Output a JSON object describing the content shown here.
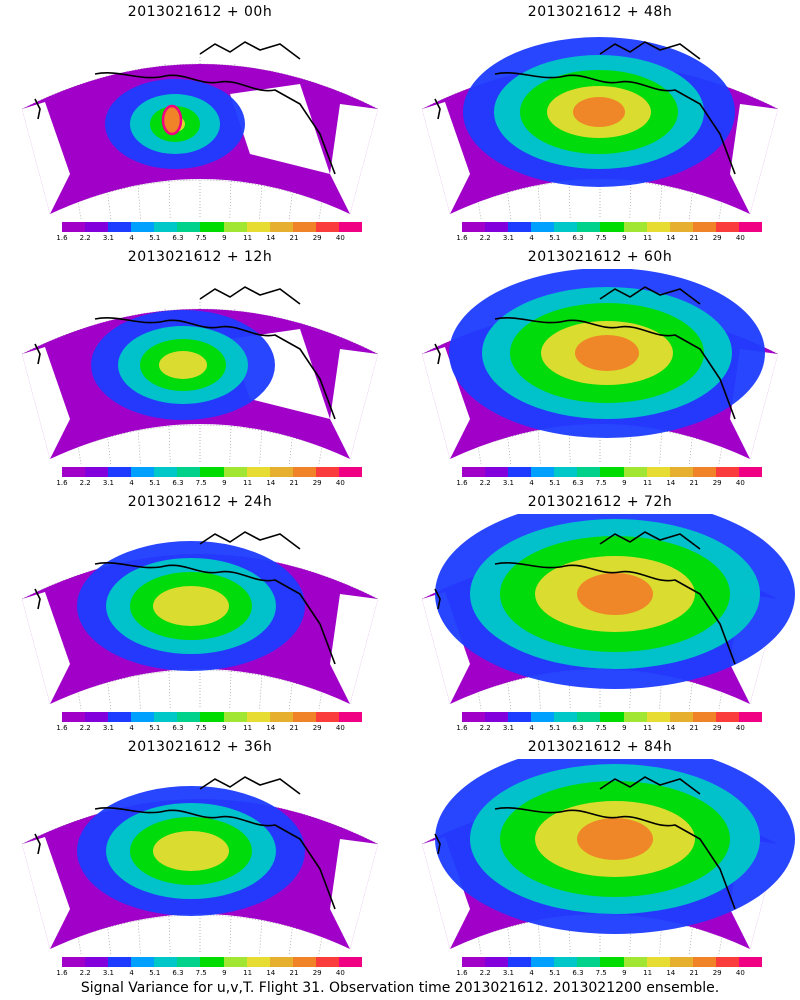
{
  "panels": [
    {
      "title": "2013021612 + 00h",
      "level": 0
    },
    {
      "title": "2013021612 + 48h",
      "level": 3
    },
    {
      "title": "2013021612 + 12h",
      "level": 1
    },
    {
      "title": "2013021612 + 60h",
      "level": 4
    },
    {
      "title": "2013021612 + 24h",
      "level": 2
    },
    {
      "title": "2013021612 + 72h",
      "level": 5
    },
    {
      "title": "2013021612 + 36h",
      "level": 2
    },
    {
      "title": "2013021612 + 84h",
      "level": 5
    }
  ],
  "colorbar": {
    "labels": [
      "1.6",
      "2.2",
      "3.1",
      "4",
      "5.1",
      "6.3",
      "7.5",
      "9",
      "11",
      "14",
      "21",
      "29",
      "40"
    ],
    "colors": [
      "#a000c8",
      "#8200dc",
      "#1e3cff",
      "#00a0ff",
      "#00c8c8",
      "#00d28c",
      "#00dc00",
      "#a0e632",
      "#e6dc32",
      "#e6af2d",
      "#f08228",
      "#fa3c3c",
      "#f00082"
    ]
  },
  "footer": "Signal Variance for u,v,T. Flight 31. Observation time 2013021612. 2013021200 ensemble."
}
